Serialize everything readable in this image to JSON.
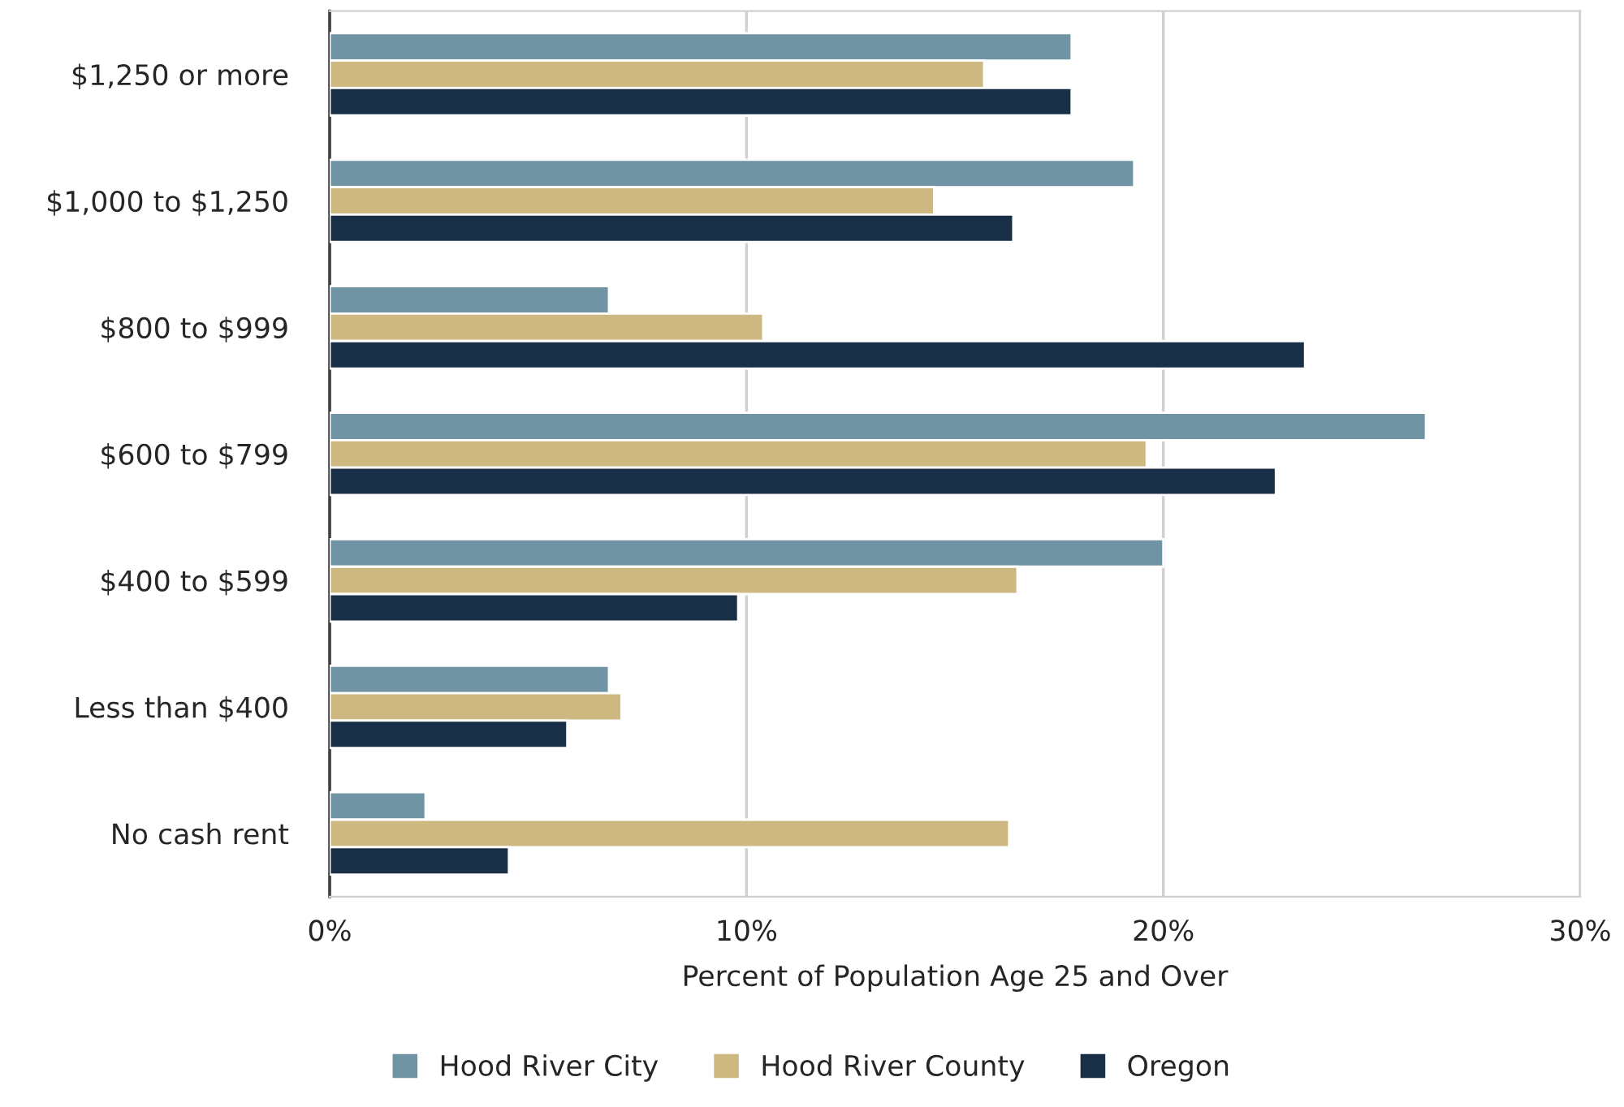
{
  "chart_data": {
    "type": "bar",
    "orientation": "horizontal",
    "xlabel": "Percent of Population Age 25 and Over",
    "categories": [
      "$1,250 or more",
      "$1,000 to $1,250",
      "$800 to $999",
      "$600 to $799",
      "$400 to $599",
      "Less than $400",
      "No cash rent"
    ],
    "series": [
      {
        "name": "Hood River City",
        "color": "#7094a4",
        "values": [
          17.8,
          19.3,
          6.7,
          26.3,
          20.0,
          6.7,
          2.3
        ]
      },
      {
        "name": "Hood River County",
        "color": "#cdb882",
        "values": [
          15.7,
          14.5,
          10.4,
          19.6,
          16.5,
          7.0,
          16.3
        ]
      },
      {
        "name": "Oregon",
        "color": "#192f47",
        "values": [
          17.8,
          16.4,
          23.4,
          22.7,
          9.8,
          5.7,
          4.3
        ]
      }
    ],
    "xlim": [
      0,
      30
    ],
    "xticks": [
      {
        "value": 0,
        "label": "0%"
      },
      {
        "value": 10,
        "label": "10%"
      },
      {
        "value": 20,
        "label": "20%"
      },
      {
        "value": 30,
        "label": "30%"
      }
    ],
    "grid": "x",
    "legend": "bottom"
  }
}
